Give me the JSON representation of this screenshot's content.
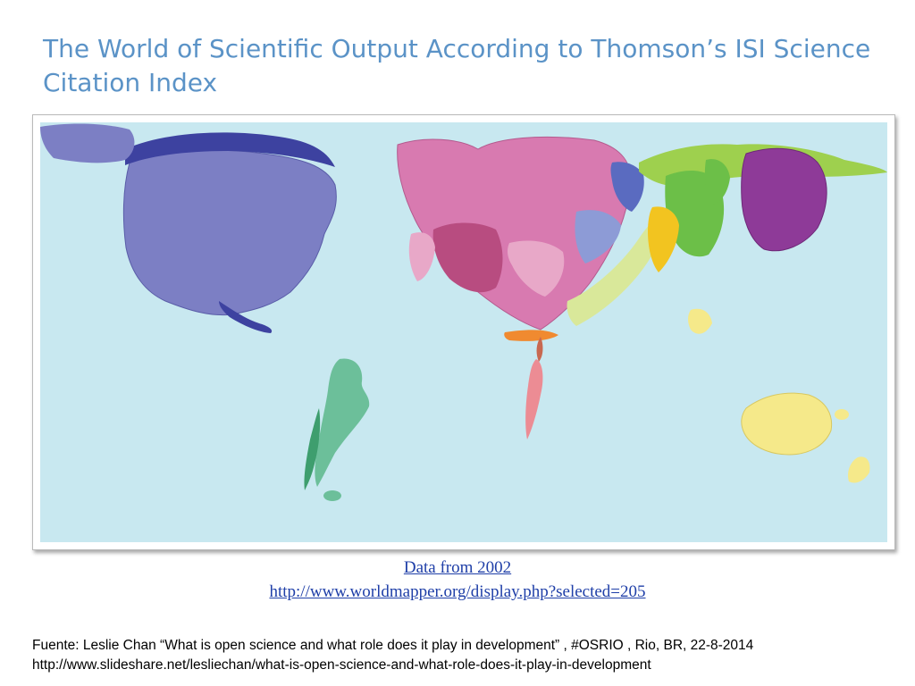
{
  "slide": {
    "title": "The World of Scientific Output According to Thomson’s ISI Science Citation Index"
  },
  "map": {
    "ocean_color": "#c8e8f0",
    "regions": [
      {
        "id": "north-america",
        "color": "#7c7fc4"
      },
      {
        "id": "arctic-north-america",
        "color": "#3d42a0"
      },
      {
        "id": "south-america",
        "color": "#6cbf9a"
      },
      {
        "id": "western-europe",
        "color": "#c1558f"
      },
      {
        "id": "eastern-europe",
        "color": "#5a6bc0"
      },
      {
        "id": "north-africa-middle-east",
        "color": "#f08a30"
      },
      {
        "id": "southern-africa",
        "color": "#ec8c94"
      },
      {
        "id": "russia-central-asia",
        "color": "#9ed04e"
      },
      {
        "id": "south-asia",
        "color": "#f2c420"
      },
      {
        "id": "china",
        "color": "#6cbf48"
      },
      {
        "id": "japan",
        "color": "#8e3a98"
      },
      {
        "id": "oceania",
        "color": "#f5e98a"
      }
    ]
  },
  "sources": {
    "data_link": "Data from 2002",
    "url_link": "http://www.worldmapper.org/display.php?selected=205"
  },
  "footnote": {
    "line1": "Fuente:  Leslie Chan “What is open science and what role does it play in development” , #OSRIO , Rio, BR,  22-8-2014",
    "line2": "http://www.slideshare.net/lesliechan/what-is-open-science-and-what-role-does-it-play-in-development"
  }
}
